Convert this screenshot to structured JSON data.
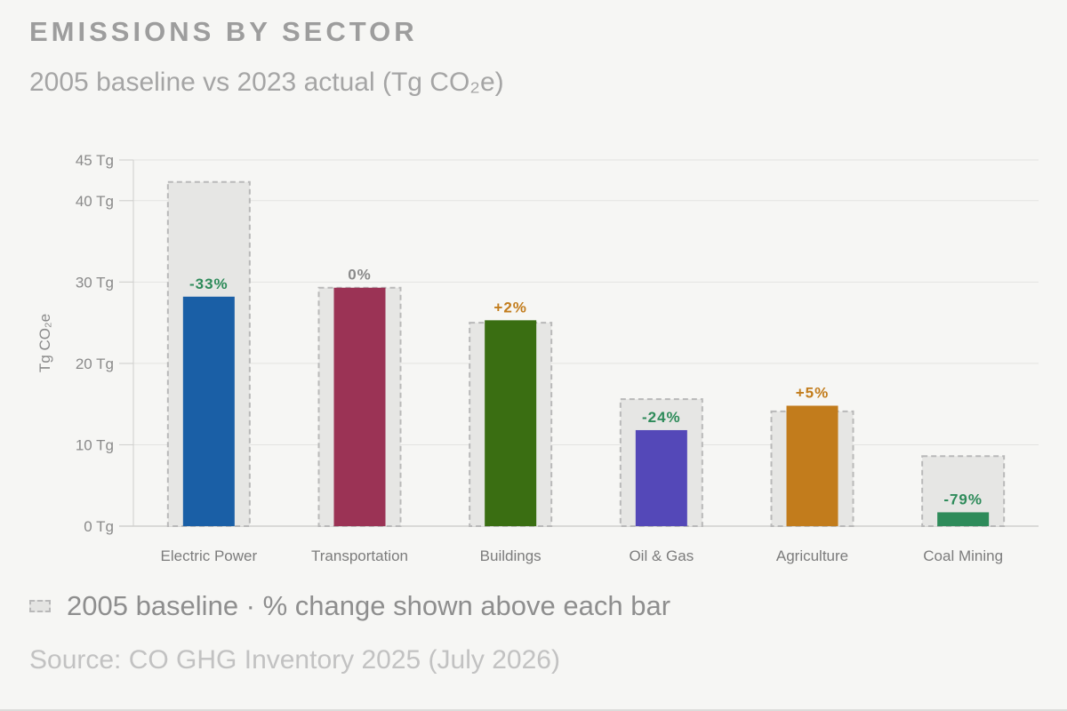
{
  "header": {
    "title": "EMISSIONS BY SECTOR",
    "subtitle": "2005 baseline vs 2023 actual (Tg CO₂e)"
  },
  "legend": {
    "label": "2005 baseline · % change shown above each bar"
  },
  "footer": {
    "source": "Source: CO GHG Inventory 2025 (July 2026)"
  },
  "chart_data": {
    "type": "bar",
    "title": "EMISSIONS BY SECTOR",
    "subtitle": "2005 baseline vs 2023 actual (Tg CO₂e)",
    "xlabel": "",
    "ylabel": "Tg CO₂e",
    "ylim": [
      0,
      45
    ],
    "yticks": [
      0,
      10,
      20,
      30,
      40,
      45
    ],
    "ytick_labels": [
      "0 Tg",
      "10 Tg",
      "20 Tg",
      "30 Tg",
      "40 Tg",
      "45 Tg"
    ],
    "grid": true,
    "categories": [
      "Electric Power",
      "Transportation",
      "Buildings",
      "Oil & Gas",
      "Agriculture",
      "Coal Mining"
    ],
    "series": [
      {
        "name": "2005 baseline",
        "values": [
          42.3,
          29.3,
          25.0,
          15.6,
          14.1,
          8.6
        ]
      },
      {
        "name": "",
        "values": [
          28.2,
          29.3,
          25.3,
          11.8,
          14.8,
          1.7
        ]
      }
    ],
    "data_labels": [
      "-33%",
      "0%",
      "+2%",
      "-24%",
      "+5%",
      "-79%"
    ],
    "label_colors": [
      "#2e8b5a",
      "#8a8a8a",
      "#c27c1c",
      "#2e8b5a",
      "#c27c1c",
      "#2e8b5a"
    ],
    "bar_colors": [
      "#1a5fa6",
      "#9b3355",
      "#3a6e12",
      "#5448b8",
      "#c27c1c",
      "#2e8b5a"
    ],
    "baseline_color": "#e6e6e4",
    "baseline_border_color": "#b9b9b9"
  }
}
